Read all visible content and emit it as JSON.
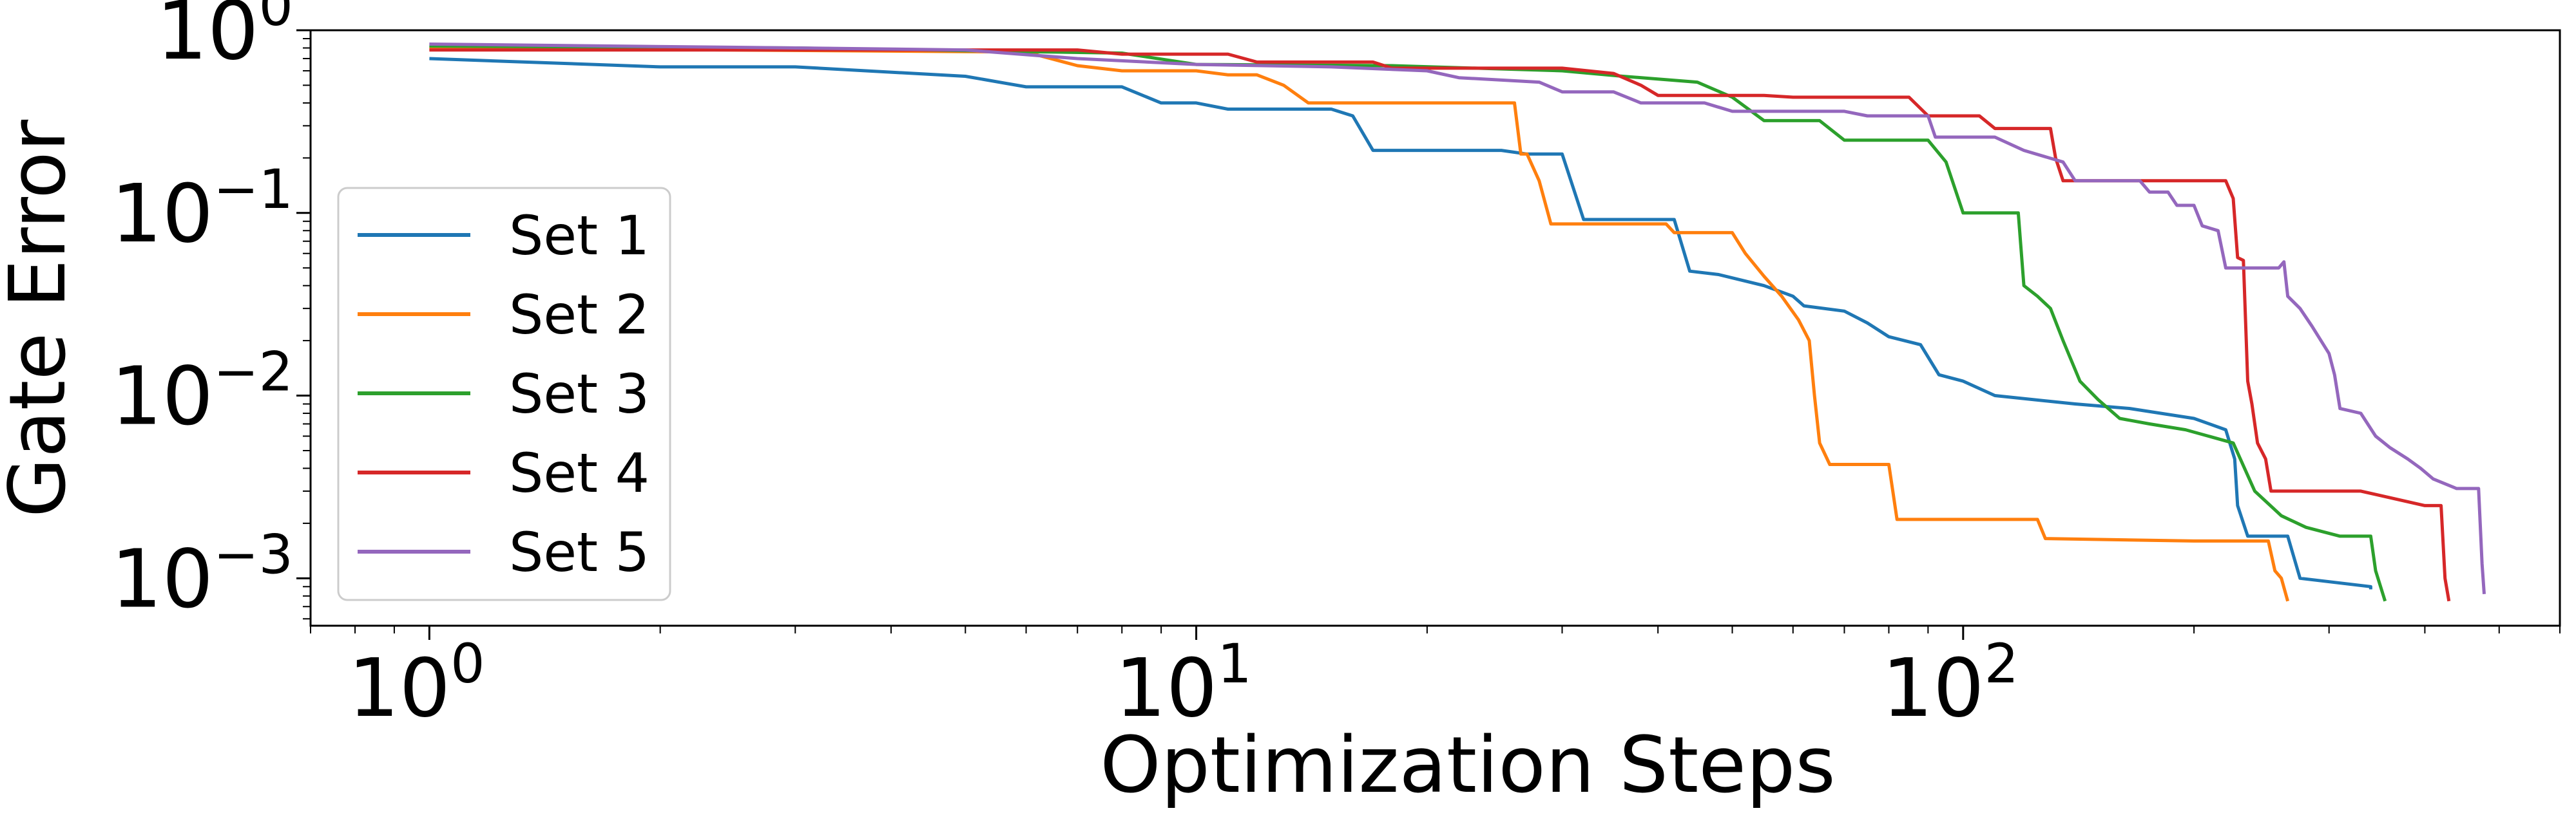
{
  "chart_data": {
    "type": "line",
    "title": "",
    "xlabel": "Optimization Steps",
    "ylabel": "Gate Error",
    "xscale": "log",
    "yscale": "log",
    "xlim": [
      0.7,
      600
    ],
    "ylim": [
      0.00055,
      1.0
    ],
    "grid": false,
    "legend_placement": "lower-left",
    "x_ticks": [
      {
        "value": 1,
        "base": "10",
        "exp": "0"
      },
      {
        "value": 10,
        "base": "10",
        "exp": "1"
      },
      {
        "value": 100,
        "base": "10",
        "exp": "2"
      }
    ],
    "y_ticks": [
      {
        "value": 1,
        "base": "10",
        "exp": "0"
      },
      {
        "value": 0.1,
        "base": "10",
        "exp": "−1"
      },
      {
        "value": 0.01,
        "base": "10",
        "exp": "−2"
      },
      {
        "value": 0.001,
        "base": "10",
        "exp": "−3"
      }
    ],
    "series": [
      {
        "name": "Set 1",
        "color": "#1f77b4",
        "points": [
          [
            1,
            0.7
          ],
          [
            2,
            0.63
          ],
          [
            3,
            0.63
          ],
          [
            5,
            0.56
          ],
          [
            6,
            0.49
          ],
          [
            8,
            0.49
          ],
          [
            9,
            0.4
          ],
          [
            10,
            0.4
          ],
          [
            11,
            0.37
          ],
          [
            15,
            0.37
          ],
          [
            16,
            0.34
          ],
          [
            17,
            0.22
          ],
          [
            25,
            0.22
          ],
          [
            27,
            0.21
          ],
          [
            30,
            0.21
          ],
          [
            32,
            0.092
          ],
          [
            42,
            0.092
          ],
          [
            44,
            0.048
          ],
          [
            48,
            0.046
          ],
          [
            55,
            0.04
          ],
          [
            60,
            0.035
          ],
          [
            62,
            0.031
          ],
          [
            70,
            0.029
          ],
          [
            75,
            0.025
          ],
          [
            80,
            0.021
          ],
          [
            88,
            0.019
          ],
          [
            93,
            0.013
          ],
          [
            100,
            0.012
          ],
          [
            110,
            0.01
          ],
          [
            140,
            0.009
          ],
          [
            165,
            0.0085
          ],
          [
            200,
            0.0075
          ],
          [
            220,
            0.0065
          ],
          [
            226,
            0.0045
          ],
          [
            228,
            0.0025
          ],
          [
            235,
            0.0017
          ],
          [
            265,
            0.0017
          ],
          [
            275,
            0.001
          ],
          [
            340,
            0.0009
          ],
          [
            340,
            0.00087
          ]
        ]
      },
      {
        "name": "Set 2",
        "color": "#ff7f0e",
        "points": [
          [
            1,
            0.8
          ],
          [
            6,
            0.76
          ],
          [
            7,
            0.64
          ],
          [
            8,
            0.6
          ],
          [
            10,
            0.6
          ],
          [
            11,
            0.57
          ],
          [
            12,
            0.57
          ],
          [
            13,
            0.5
          ],
          [
            14,
            0.4
          ],
          [
            26,
            0.4
          ],
          [
            26.5,
            0.21
          ],
          [
            27,
            0.21
          ],
          [
            28,
            0.15
          ],
          [
            29,
            0.087
          ],
          [
            41,
            0.087
          ],
          [
            42,
            0.078
          ],
          [
            50,
            0.078
          ],
          [
            52,
            0.06
          ],
          [
            55,
            0.045
          ],
          [
            58,
            0.035
          ],
          [
            61,
            0.026
          ],
          [
            63,
            0.02
          ],
          [
            64,
            0.01
          ],
          [
            65,
            0.0055
          ],
          [
            67,
            0.0042
          ],
          [
            80,
            0.0042
          ],
          [
            82,
            0.0021
          ],
          [
            125,
            0.0021
          ],
          [
            128,
            0.00165
          ],
          [
            200,
            0.0016
          ],
          [
            250,
            0.0016
          ],
          [
            255,
            0.0011
          ],
          [
            260,
            0.001
          ],
          [
            265,
            0.00075
          ]
        ]
      },
      {
        "name": "Set 3",
        "color": "#2ca02c",
        "points": [
          [
            1,
            0.82
          ],
          [
            3,
            0.8
          ],
          [
            8,
            0.75
          ],
          [
            10,
            0.65
          ],
          [
            18,
            0.64
          ],
          [
            30,
            0.6
          ],
          [
            36,
            0.56
          ],
          [
            45,
            0.52
          ],
          [
            50,
            0.43
          ],
          [
            55,
            0.32
          ],
          [
            65,
            0.32
          ],
          [
            70,
            0.25
          ],
          [
            90,
            0.25
          ],
          [
            95,
            0.19
          ],
          [
            100,
            0.1
          ],
          [
            118,
            0.1
          ],
          [
            120,
            0.04
          ],
          [
            125,
            0.035
          ],
          [
            130,
            0.03
          ],
          [
            135,
            0.02
          ],
          [
            142,
            0.012
          ],
          [
            150,
            0.0095
          ],
          [
            160,
            0.0075
          ],
          [
            175,
            0.007
          ],
          [
            195,
            0.0065
          ],
          [
            225,
            0.0055
          ],
          [
            240,
            0.003
          ],
          [
            260,
            0.0022
          ],
          [
            280,
            0.0019
          ],
          [
            310,
            0.0017
          ],
          [
            340,
            0.0017
          ],
          [
            345,
            0.0011
          ],
          [
            355,
            0.00075
          ]
        ]
      },
      {
        "name": "Set 4",
        "color": "#d62728",
        "points": [
          [
            1,
            0.78
          ],
          [
            7,
            0.78
          ],
          [
            8,
            0.74
          ],
          [
            11,
            0.74
          ],
          [
            12,
            0.67
          ],
          [
            17,
            0.67
          ],
          [
            18,
            0.62
          ],
          [
            30,
            0.62
          ],
          [
            35,
            0.58
          ],
          [
            38,
            0.5
          ],
          [
            40,
            0.44
          ],
          [
            55,
            0.44
          ],
          [
            60,
            0.43
          ],
          [
            85,
            0.43
          ],
          [
            90,
            0.34
          ],
          [
            105,
            0.34
          ],
          [
            110,
            0.29
          ],
          [
            130,
            0.29
          ],
          [
            132,
            0.2
          ],
          [
            135,
            0.15
          ],
          [
            185,
            0.15
          ],
          [
            220,
            0.15
          ],
          [
            225,
            0.12
          ],
          [
            228,
            0.057
          ],
          [
            232,
            0.055
          ],
          [
            235,
            0.012
          ],
          [
            238,
            0.009
          ],
          [
            242,
            0.0055
          ],
          [
            248,
            0.0045
          ],
          [
            252,
            0.003
          ],
          [
            330,
            0.003
          ],
          [
            400,
            0.0025
          ],
          [
            420,
            0.0025
          ],
          [
            425,
            0.001
          ],
          [
            430,
            0.00075
          ]
        ]
      },
      {
        "name": "Set 5",
        "color": "#9467bd",
        "points": [
          [
            1,
            0.84
          ],
          [
            3,
            0.8
          ],
          [
            5,
            0.78
          ],
          [
            7,
            0.7
          ],
          [
            10,
            0.65
          ],
          [
            15,
            0.63
          ],
          [
            20,
            0.6
          ],
          [
            22,
            0.55
          ],
          [
            28,
            0.52
          ],
          [
            30,
            0.46
          ],
          [
            35,
            0.46
          ],
          [
            38,
            0.4
          ],
          [
            46,
            0.4
          ],
          [
            50,
            0.36
          ],
          [
            70,
            0.36
          ],
          [
            75,
            0.34
          ],
          [
            90,
            0.34
          ],
          [
            92,
            0.26
          ],
          [
            110,
            0.26
          ],
          [
            120,
            0.22
          ],
          [
            135,
            0.19
          ],
          [
            140,
            0.15
          ],
          [
            170,
            0.15
          ],
          [
            175,
            0.13
          ],
          [
            185,
            0.13
          ],
          [
            190,
            0.11
          ],
          [
            200,
            0.11
          ],
          [
            205,
            0.085
          ],
          [
            215,
            0.08
          ],
          [
            220,
            0.05
          ],
          [
            258,
            0.05
          ],
          [
            262,
            0.054
          ],
          [
            265,
            0.035
          ],
          [
            275,
            0.03
          ],
          [
            285,
            0.024
          ],
          [
            300,
            0.017
          ],
          [
            305,
            0.013
          ],
          [
            310,
            0.0085
          ],
          [
            330,
            0.008
          ],
          [
            345,
            0.006
          ],
          [
            360,
            0.0052
          ],
          [
            380,
            0.0045
          ],
          [
            395,
            0.004
          ],
          [
            410,
            0.0035
          ],
          [
            440,
            0.0031
          ],
          [
            470,
            0.0031
          ],
          [
            475,
            0.0012
          ],
          [
            478,
            0.00082
          ]
        ]
      }
    ]
  }
}
